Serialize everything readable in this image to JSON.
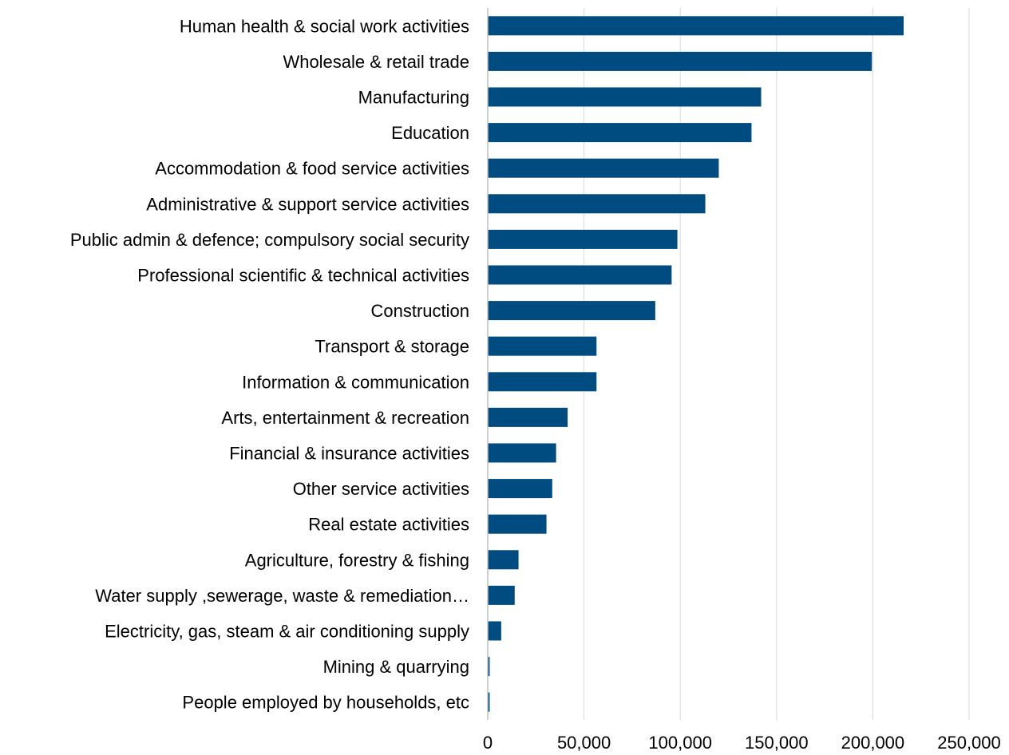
{
  "chart_data": {
    "type": "bar",
    "orientation": "horizontal",
    "title": "",
    "xlabel": "",
    "ylabel": "",
    "xlim": [
      0,
      250000
    ],
    "x_ticks": [
      0,
      50000,
      100000,
      150000,
      200000,
      250000
    ],
    "x_tick_labels": [
      "0",
      "50,000",
      "100,000",
      "150,000",
      "200,000",
      "250,000"
    ],
    "grid": "vertical",
    "legend": "none",
    "bar_color": "#004b7f",
    "categories": [
      "Human health & social work activities",
      "Wholesale & retail trade",
      "Manufacturing",
      "Education",
      "Accommodation & food service activities",
      "Administrative & support service activities",
      "Public admin & defence; compulsory social security",
      "Professional scientific & technical activities",
      "Construction",
      "Transport & storage",
      "Information & communication",
      "Arts, entertainment & recreation",
      "Financial & insurance activities",
      "Other service activities",
      "Real estate activities",
      "Agriculture, forestry & fishing",
      "Water supply ,sewerage, waste & remediation…",
      "Electricity, gas, steam & air conditioning supply",
      "Mining & quarrying",
      "People employed by households, etc"
    ],
    "values": [
      216000,
      199500,
      142000,
      137000,
      120000,
      113000,
      98500,
      95500,
      87000,
      56500,
      56500,
      41500,
      35500,
      33500,
      30500,
      16000,
      14000,
      7000,
      1000,
      1000
    ]
  }
}
